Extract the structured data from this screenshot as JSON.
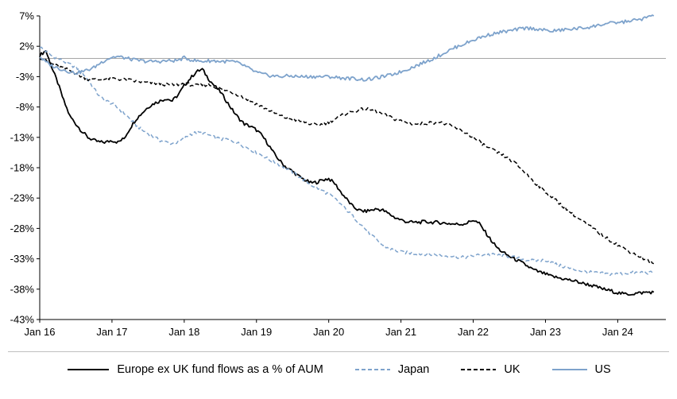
{
  "chart_data": {
    "type": "line",
    "title": "",
    "x_tick_labels": [
      "Jan 16",
      "Jan 17",
      "Jan 18",
      "Jan 19",
      "Jan 20",
      "Jan 21",
      "Jan 22",
      "Jan 23",
      "Jan 24"
    ],
    "y_ticks": [
      7,
      2,
      -3,
      -8,
      -13,
      -18,
      -23,
      -28,
      -33,
      -38,
      -43
    ],
    "y_tick_labels": [
      "7%",
      "2%",
      "-3%",
      "-8%",
      "-13%",
      "-18%",
      "-23%",
      "-28%",
      "-33%",
      "-38%",
      "-43%"
    ],
    "ylim": [
      -43,
      7
    ],
    "zero_line": 0,
    "x_unit": "months from Jan 2016",
    "legend_position": "bottom",
    "grid": "off",
    "colors": {
      "black": "#000000",
      "steel_blue": "#7EA3CC",
      "zero_line": "#A6A6A6",
      "axis": "#000000"
    },
    "series": [
      {
        "name": "Europe ex UK fund flows as a % of AUM",
        "color": "#000000",
        "dash": "solid",
        "values": [
          0.5,
          1.3,
          -1.5,
          -4,
          -7,
          -9.5,
          -10.8,
          -12,
          -13,
          -13.5,
          -13.8,
          -13.8,
          -13.5,
          -13.8,
          -13.2,
          -11.5,
          -10,
          -9,
          -8,
          -7.4,
          -7,
          -6.6,
          -7,
          -6,
          -4.5,
          -3.3,
          -2.2,
          -1.8,
          -3.3,
          -4.5,
          -5.5,
          -7,
          -8.5,
          -9.8,
          -10.8,
          -11.2,
          -11.8,
          -12.8,
          -14.2,
          -15.8,
          -17,
          -18,
          -18.6,
          -19.4,
          -20,
          -20.5,
          -20.4,
          -20,
          -19.8,
          -20.6,
          -22,
          -23.2,
          -24.4,
          -25,
          -25.2,
          -25,
          -24.8,
          -25,
          -25.6,
          -26.2,
          -26.6,
          -26.9,
          -27,
          -27,
          -26.9,
          -27,
          -27,
          -27.1,
          -27.2,
          -27.3,
          -27.3,
          -27.1,
          -26.6,
          -27.2,
          -28.6,
          -30,
          -31.2,
          -32,
          -32.6,
          -33.1,
          -33.6,
          -34.2,
          -34.8,
          -35.2,
          -35.5,
          -35.9,
          -36.1,
          -36.3,
          -36.5,
          -36.7,
          -37,
          -37.2,
          -37.5,
          -37.8,
          -38.1,
          -38.3,
          -38.6,
          -38.8,
          -38.8,
          -38.7,
          -38.6,
          -38.5,
          -38.5
        ]
      },
      {
        "name": "Japan",
        "color": "#7EA3CC",
        "dash": "dashed",
        "values": [
          1.9,
          1.2,
          0.4,
          0,
          -0.5,
          -1,
          -1.5,
          -2.2,
          -3.5,
          -5,
          -6.3,
          -7,
          -7.4,
          -8.2,
          -9,
          -10,
          -11,
          -11.8,
          -12.4,
          -13,
          -13.5,
          -13.8,
          -14,
          -13.8,
          -13.2,
          -12.5,
          -12.2,
          -12.3,
          -12.6,
          -13,
          -13.3,
          -13.3,
          -13.6,
          -14,
          -14.5,
          -15,
          -15.5,
          -16,
          -16.6,
          -17.1,
          -17.6,
          -18.1,
          -18.7,
          -19.4,
          -20.1,
          -20.8,
          -21.3,
          -21.8,
          -22.4,
          -23.1,
          -24,
          -25,
          -26,
          -27,
          -28,
          -29,
          -30,
          -30.8,
          -31.3,
          -31.6,
          -31.9,
          -32,
          -32.1,
          -32.2,
          -32.2,
          -32.3,
          -32.3,
          -32.5,
          -32.5,
          -32.6,
          -32.8,
          -32.7,
          -32.5,
          -32.4,
          -32.3,
          -32.3,
          -32.4,
          -32.5,
          -32.6,
          -32.8,
          -33,
          -33.2,
          -33.3,
          -33.3,
          -33.2,
          -33.6,
          -34,
          -34.3,
          -34.6,
          -34.8,
          -35,
          -35.2,
          -35.3,
          -35.4,
          -35.5,
          -35.5,
          -35.5,
          -35.4,
          -35.3,
          -35.3,
          -35.2,
          -35.3,
          -35.3
        ]
      },
      {
        "name": "UK",
        "color": "#000000",
        "dash": "dashed",
        "values": [
          0.2,
          -0.4,
          -0.9,
          -1.3,
          -1.6,
          -2,
          -2.5,
          -3,
          -3.4,
          -3.5,
          -3.5,
          -3.4,
          -3.3,
          -3.4,
          -3.5,
          -3.6,
          -3.8,
          -3.9,
          -4,
          -4.1,
          -4.2,
          -4.3,
          -4.4,
          -4.3,
          -4.1,
          -4.3,
          -4.5,
          -4.4,
          -4.3,
          -4.6,
          -5,
          -5.3,
          -5.6,
          -6,
          -6.5,
          -7,
          -7.5,
          -8,
          -8.5,
          -9,
          -9.5,
          -9.8,
          -10,
          -10.3,
          -10.5,
          -10.8,
          -11,
          -10.8,
          -10.5,
          -10,
          -9.5,
          -9,
          -8.8,
          -8.5,
          -8.3,
          -8.5,
          -8.8,
          -9.2,
          -9.6,
          -10,
          -10.3,
          -10.6,
          -10.8,
          -10.8,
          -10.7,
          -10.6,
          -10.5,
          -10.7,
          -11,
          -11.4,
          -11.9,
          -12.4,
          -13,
          -13.7,
          -14.4,
          -15,
          -15.5,
          -16,
          -16.6,
          -17.3,
          -18.2,
          -19.2,
          -20.2,
          -21.1,
          -22,
          -22.8,
          -23.6,
          -24.4,
          -25.2,
          -26,
          -26.7,
          -27.4,
          -28.1,
          -28.8,
          -29.5,
          -30.1,
          -30.7,
          -31.3,
          -31.8,
          -32.3,
          -32.8,
          -33.3,
          -33.8
        ]
      },
      {
        "name": "US",
        "color": "#7EA3CC",
        "dash": "solid",
        "values": [
          0.3,
          -0.6,
          -1.2,
          -1.6,
          -1.9,
          -2.2,
          -2.4,
          -2.2,
          -1.9,
          -1.5,
          -0.8,
          -0.2,
          0.2,
          0.3,
          0.1,
          -0.1,
          -0.3,
          -0.4,
          -0.5,
          -0.5,
          -0.5,
          -0.4,
          -0.4,
          -0.3,
          0.1,
          -0.2,
          -0.4,
          -0.5,
          -0.4,
          -0.4,
          -0.5,
          -0.5,
          -0.5,
          -0.8,
          -1.2,
          -1.8,
          -2.3,
          -2.6,
          -2.8,
          -2.9,
          -3,
          -2.9,
          -2.9,
          -3,
          -3,
          -3,
          -3,
          -3,
          -3,
          -3.1,
          -3.2,
          -3.3,
          -3.3,
          -3.4,
          -3.5,
          -3.4,
          -3.2,
          -3,
          -2.8,
          -2.5,
          -2.2,
          -1.8,
          -1.4,
          -1,
          -0.6,
          -0.2,
          0.3,
          0.8,
          1.3,
          1.8,
          2.2,
          2.6,
          3,
          3.4,
          3.7,
          4,
          4.2,
          4.4,
          4.5,
          4.7,
          4.9,
          5,
          4.9,
          4.8,
          4.6,
          4.5,
          4.6,
          4.7,
          4.8,
          4.9,
          5,
          5.1,
          5.3,
          5.5,
          5.7,
          5.8,
          5.9,
          6,
          6.2,
          6.3,
          6.5,
          6.8,
          7
        ]
      }
    ]
  }
}
